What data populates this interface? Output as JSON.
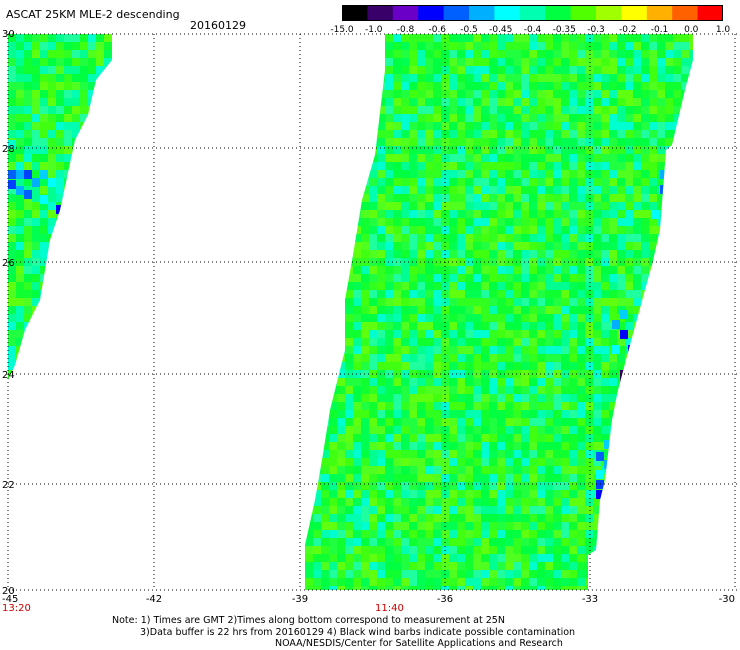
{
  "title": "ASCAT 25KM MLE-2 descending",
  "date": "20160129",
  "colorbar": {
    "labels": [
      "-15.0",
      "-1.0",
      "-0.8",
      "-0.6",
      "-0.5",
      "-0.45",
      "-0.4",
      "-0.35",
      "-0.3",
      "-0.2",
      "-0.1",
      "0.0",
      "1.0"
    ],
    "colors": [
      "#000000",
      "#3a006a",
      "#6a00c8",
      "#0000ff",
      "#0060ff",
      "#00b0ff",
      "#00ffff",
      "#00ffb0",
      "#00ff40",
      "#50ff00",
      "#a0ff00",
      "#ffff00",
      "#ffb000",
      "#ff6000",
      "#ff0000"
    ]
  },
  "map": {
    "x_ticks": [
      "-45",
      "-42",
      "-39",
      "-36",
      "-33",
      "-30"
    ],
    "y_ticks": [
      "30",
      "28",
      "26",
      "24",
      "22",
      "20"
    ],
    "time_labels": [
      "13:20",
      "11:40"
    ]
  },
  "notes": {
    "line1": "Note: 1) Times are GMT 2)Times along bottom correspond to measurement at 25N",
    "line2": "3)Data buffer is 22 hrs from 20160129 4) Black wind barbs indicate possible contamination",
    "line3": "NOAA/NESDIS/Center for Satellite Applications and Research"
  }
}
